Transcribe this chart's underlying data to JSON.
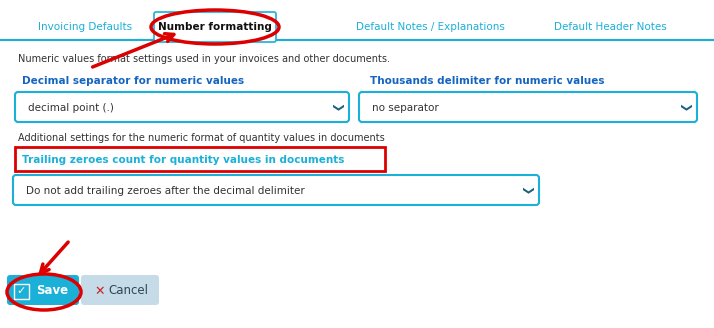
{
  "bg_color": "#ffffff",
  "tab_color": "#1ab0d8",
  "tab_active_text": "Number formatting",
  "tab_inactive_color": "#1ab0d8",
  "separator_color": "#1ab0d8",
  "description_text": "Numeric values format settings used in your invoices and other documents.",
  "label1": "Decimal separator for numeric values",
  "label2": "Thousands delimiter for numeric values",
  "dropdown1_text": "decimal point (.)",
  "dropdown2_text": "no separator",
  "additional_text": "Additional settings for the numeric format of quantity values in documents",
  "box_label": "Trailing zeroes count for quantity values in documents",
  "dropdown3_text": "Do not add trailing zeroes after the decimal delimiter",
  "save_text": "Save",
  "cancel_text": "Cancel",
  "arrow_color": "#dd0000",
  "box_border_color": "#dd0000",
  "dropdown_border_color": "#1ab0d8",
  "save_bg": "#1ab0d8",
  "cancel_bg": "#c5dce8",
  "label_color": "#1565c0",
  "text_color": "#333333",
  "chevron_color": "#1a6080"
}
